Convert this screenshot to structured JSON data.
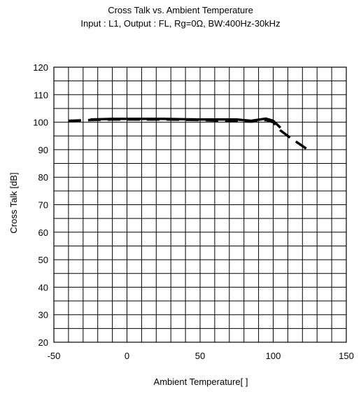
{
  "chart_data": {
    "type": "line",
    "title": "Cross Talk vs. Ambient Temperature",
    "subtitle": "Input : L1, Output : FL, Rg=0Ω, BW:400Hz-30kHz",
    "xlabel": "Ambient Temperature[   ]",
    "ylabel": "Cross Talk [dB]",
    "xlim": [
      -50,
      150
    ],
    "ylim": [
      20,
      120
    ],
    "xticks": [
      -50,
      0,
      50,
      100,
      150
    ],
    "yticks": [
      20,
      30,
      40,
      50,
      60,
      70,
      80,
      90,
      100,
      110,
      120
    ],
    "x_minor_step": 10,
    "y_minor_step": 5,
    "grid": true,
    "series": [
      {
        "style": "solid",
        "x": [
          -25,
          -10,
          0,
          25,
          50,
          75,
          85,
          95,
          100,
          105
        ],
        "y": [
          101,
          101.2,
          101.2,
          101.2,
          101,
          101,
          100.5,
          101.3,
          100.5,
          98
        ]
      },
      {
        "style": "dashed",
        "x": [
          -40,
          -25,
          -10,
          0,
          25,
          50,
          75,
          85,
          95,
          100,
          105,
          110,
          125
        ],
        "y": [
          100.5,
          100.8,
          101,
          101,
          101,
          100.8,
          100.4,
          100.2,
          100.8,
          100,
          97,
          95,
          89.5
        ]
      }
    ]
  }
}
